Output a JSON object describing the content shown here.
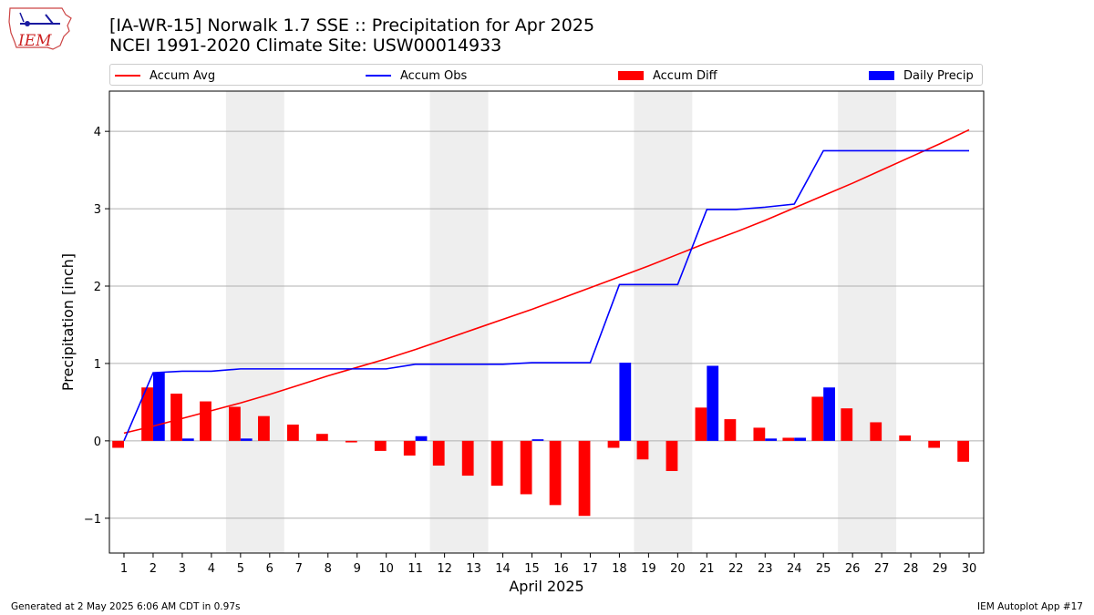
{
  "header": {
    "title_line1": "[IA-WR-15] Norwalk 1.7 SSE :: Precipitation for Apr 2025",
    "title_line2": "NCEI 1991-2020 Climate Site: USW00014933",
    "logo_text": "IEM"
  },
  "legend": {
    "accum_avg": "Accum Avg",
    "accum_obs": "Accum Obs",
    "accum_diff": "Accum Diff",
    "daily_precip": "Daily Precip"
  },
  "colors": {
    "accum_avg": "#ff0000",
    "accum_obs": "#0000ff",
    "accum_diff": "#ff0000",
    "daily_precip": "#0000ff",
    "weekend_band": "#eeeeee",
    "grid": "#b0b0b0"
  },
  "footer": {
    "left": "Generated at 2 May 2025 6:06 AM CDT in 0.97s",
    "right": "IEM Autoplot App #17"
  },
  "chart_data": {
    "type": "bar",
    "xlabel": "April 2025",
    "ylabel": "Precipitation [inch]",
    "xlim": [
      0.5,
      30.5
    ],
    "ylim": [
      -1.45,
      4.52
    ],
    "yticks": [
      -1,
      0,
      1,
      2,
      3,
      4
    ],
    "ytick_labels": [
      "−1",
      "0",
      "1",
      "2",
      "3",
      "4"
    ],
    "days": [
      1,
      2,
      3,
      4,
      5,
      6,
      7,
      8,
      9,
      10,
      11,
      12,
      13,
      14,
      15,
      16,
      17,
      18,
      19,
      20,
      21,
      22,
      23,
      24,
      25,
      26,
      27,
      28,
      29,
      30
    ],
    "weekend_bands": [
      [
        4.5,
        6.5
      ],
      [
        11.5,
        13.5
      ],
      [
        18.5,
        20.5
      ],
      [
        25.5,
        27.5
      ]
    ],
    "legend_position": "top",
    "grid": "horizontal",
    "series": [
      {
        "name": "Accum Avg",
        "kind": "line",
        "values": [
          0.1,
          0.19,
          0.29,
          0.39,
          0.49,
          0.6,
          0.72,
          0.84,
          0.95,
          1.06,
          1.18,
          1.31,
          1.44,
          1.57,
          1.7,
          1.84,
          1.98,
          2.12,
          2.26,
          2.41,
          2.56,
          2.7,
          2.85,
          3.01,
          3.17,
          3.33,
          3.5,
          3.67,
          3.84,
          4.02
        ]
      },
      {
        "name": "Accum Obs",
        "kind": "line",
        "values": [
          0.0,
          0.88,
          0.9,
          0.9,
          0.93,
          0.93,
          0.93,
          0.93,
          0.93,
          0.93,
          0.99,
          0.99,
          0.99,
          0.99,
          1.01,
          1.01,
          1.01,
          2.02,
          2.02,
          2.02,
          2.99,
          2.99,
          3.02,
          3.06,
          3.75,
          3.75,
          3.75,
          3.75,
          3.75,
          3.75
        ]
      },
      {
        "name": "Accum Diff",
        "kind": "bar",
        "values": [
          -0.09,
          0.69,
          0.61,
          0.51,
          0.44,
          0.32,
          0.21,
          0.09,
          -0.02,
          -0.13,
          -0.19,
          -0.32,
          -0.45,
          -0.58,
          -0.69,
          -0.83,
          -0.97,
          -0.09,
          -0.24,
          -0.39,
          0.43,
          0.28,
          0.17,
          0.04,
          0.57,
          0.42,
          0.24,
          0.07,
          -0.09,
          -0.27
        ]
      },
      {
        "name": "Daily Precip",
        "kind": "bar",
        "values": [
          0.0,
          0.88,
          0.03,
          0.0,
          0.03,
          0.0,
          0.0,
          0.0,
          0.0,
          0.0,
          0.06,
          0.0,
          0.0,
          0.0,
          0.02,
          0.0,
          0.0,
          1.01,
          0.0,
          0.0,
          0.97,
          0.0,
          0.03,
          0.04,
          0.69,
          0.0,
          0.0,
          0.0,
          0.0,
          0.0
        ]
      }
    ]
  }
}
